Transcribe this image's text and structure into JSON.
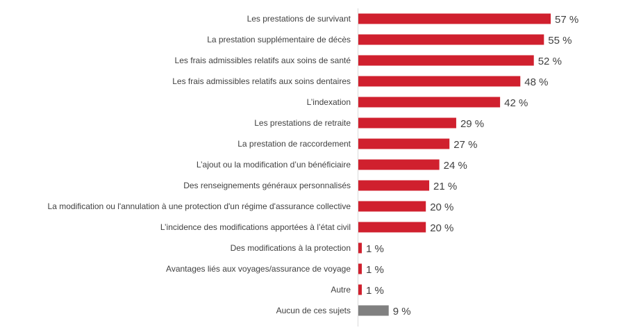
{
  "chart_data": {
    "type": "bar",
    "orientation": "horizontal",
    "title": "",
    "xlabel": "",
    "ylabel": "",
    "xlim": [
      0,
      60
    ],
    "grid": false,
    "legend": "none",
    "value_suffix": " %",
    "colors": {
      "default": "#D0202E",
      "none_option": "#808080",
      "axis": "#D9D9D9",
      "text": "#404040"
    },
    "categories": [
      "Les prestations de survivant",
      "La prestation supplémentaire de décès",
      "Les frais admissibles relatifs aux soins de santé",
      "Les frais admissibles relatifs aux soins dentaires",
      "L’indexation",
      "Les prestations de retraite",
      "La prestation de raccordement",
      "L’ajout ou la modification d’un bénéficiaire",
      "Des renseignements généraux personnalisés",
      "La modification ou l'annulation à une protection d'un régime d'assurance collective",
      "L’incidence des modifications apportées à l’état civil",
      "Des modifications à la protection",
      "Avantages liés aux voyages/assurance de voyage",
      "Autre",
      "Aucun de ces sujets"
    ],
    "values": [
      57,
      55,
      52,
      48,
      42,
      29,
      27,
      24,
      21,
      20,
      20,
      1,
      1,
      1,
      9
    ],
    "value_labels": [
      "57 %",
      "55 %",
      "52 %",
      "48 %",
      "42 %",
      "29 %",
      "27 %",
      "24 %",
      "21 %",
      "20 %",
      "20 %",
      "1 %",
      "1 %",
      "1 %",
      "9 %"
    ],
    "bar_colors": [
      "#D0202E",
      "#D0202E",
      "#D0202E",
      "#D0202E",
      "#D0202E",
      "#D0202E",
      "#D0202E",
      "#D0202E",
      "#D0202E",
      "#D0202E",
      "#D0202E",
      "#D0202E",
      "#D0202E",
      "#D0202E",
      "#808080"
    ]
  }
}
